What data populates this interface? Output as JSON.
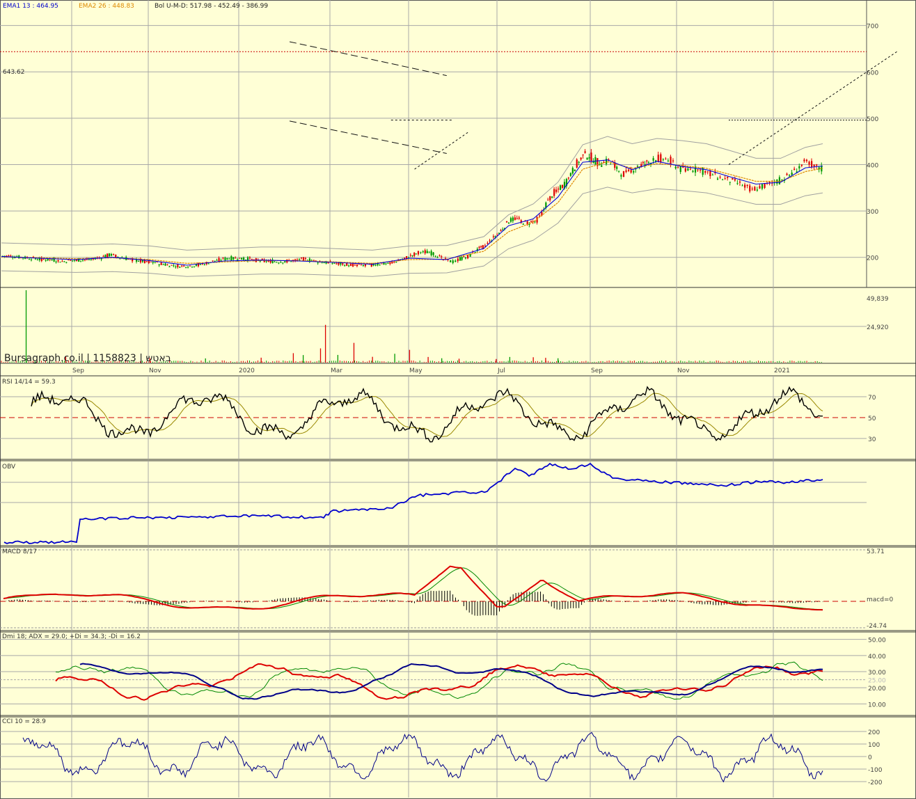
{
  "chart_data": {
    "type": "stock-technical-analysis",
    "brand_text": "Bursagraph.co.il | 1158823 | באטש",
    "header": {
      "ema1": "EMA1 13 : 464.95",
      "ema2": "EMA2 26 : 448.83",
      "bol": "Bol U-M-D: 517.98 - 452.49 - 386.99"
    },
    "price_axis": {
      "ticks": [
        200,
        300,
        400,
        500,
        600,
        700
      ],
      "ylim": [
        135,
        755
      ]
    },
    "resistance_level": 643.62,
    "resistance_label": "643.62",
    "volume_axis_labels": [
      "49,839",
      "24,920"
    ],
    "volume_max": 49839,
    "x_labels": [
      "Sep",
      "Nov",
      "2020",
      "Mar",
      "May",
      "Jul",
      "Sep",
      "Nov",
      "2021"
    ],
    "price_path": [
      [
        0,
        203
      ],
      [
        10,
        202
      ],
      [
        20,
        199
      ],
      [
        30,
        196
      ],
      [
        40,
        195
      ],
      [
        50,
        191
      ],
      [
        60,
        194
      ],
      [
        70,
        195
      ],
      [
        80,
        199
      ],
      [
        88,
        206
      ],
      [
        95,
        200
      ],
      [
        105,
        195
      ],
      [
        115,
        192
      ],
      [
        125,
        188
      ],
      [
        135,
        183
      ],
      [
        145,
        181
      ],
      [
        155,
        182
      ],
      [
        165,
        187
      ],
      [
        175,
        194
      ],
      [
        185,
        198
      ],
      [
        195,
        197
      ],
      [
        205,
        194
      ],
      [
        215,
        192
      ],
      [
        225,
        190
      ],
      [
        235,
        193
      ],
      [
        245,
        196
      ],
      [
        255,
        191
      ],
      [
        265,
        188
      ],
      [
        275,
        186
      ],
      [
        285,
        183
      ],
      [
        295,
        183
      ],
      [
        305,
        185
      ],
      [
        315,
        188
      ],
      [
        325,
        197
      ],
      [
        330,
        202
      ],
      [
        336,
        209
      ],
      [
        340,
        213
      ],
      [
        345,
        211
      ],
      [
        350,
        207
      ],
      [
        355,
        199
      ],
      [
        358,
        194
      ],
      [
        362,
        192
      ],
      [
        366,
        190
      ],
      [
        370,
        196
      ],
      [
        376,
        200
      ],
      [
        380,
        206
      ],
      [
        384,
        215
      ],
      [
        390,
        223
      ],
      [
        394,
        232
      ],
      [
        400,
        246
      ],
      [
        406,
        264
      ],
      [
        411,
        280
      ],
      [
        416,
        284
      ],
      [
        421,
        276
      ],
      [
        426,
        274
      ],
      [
        432,
        278
      ],
      [
        436,
        289
      ],
      [
        441,
        317
      ],
      [
        446,
        338
      ],
      [
        451,
        349
      ],
      [
        456,
        357
      ],
      [
        461,
        383
      ],
      [
        466,
        406
      ],
      [
        471,
        420
      ],
      [
        476,
        419
      ],
      [
        481,
        406
      ],
      [
        486,
        403
      ],
      [
        490,
        408
      ],
      [
        495,
        402
      ],
      [
        500,
        384
      ],
      [
        504,
        378
      ],
      [
        508,
        383
      ],
      [
        512,
        393
      ],
      [
        518,
        399
      ],
      [
        524,
        406
      ],
      [
        528,
        413
      ],
      [
        532,
        414
      ],
      [
        536,
        412
      ],
      [
        540,
        410
      ],
      [
        544,
        402
      ],
      [
        548,
        391
      ],
      [
        552,
        388
      ],
      [
        556,
        390
      ],
      [
        560,
        390
      ],
      [
        564,
        388
      ],
      [
        568,
        385
      ],
      [
        572,
        382
      ],
      [
        576,
        378
      ],
      [
        580,
        372
      ],
      [
        584,
        369
      ],
      [
        588,
        366
      ],
      [
        592,
        362
      ],
      [
        596,
        359
      ],
      [
        600,
        355
      ],
      [
        604,
        349
      ],
      [
        608,
        347
      ],
      [
        612,
        350
      ],
      [
        616,
        354
      ],
      [
        620,
        357
      ],
      [
        624,
        361
      ],
      [
        628,
        364
      ],
      [
        632,
        368
      ],
      [
        636,
        375
      ],
      [
        640,
        382
      ],
      [
        644,
        392
      ],
      [
        648,
        401
      ],
      [
        652,
        404
      ],
      [
        656,
        400
      ],
      [
        660,
        392
      ],
      [
        664,
        391
      ]
    ],
    "ema13_path": [
      [
        0,
        202
      ],
      [
        30,
        198
      ],
      [
        60,
        195
      ],
      [
        90,
        200
      ],
      [
        120,
        193
      ],
      [
        150,
        183
      ],
      [
        180,
        192
      ],
      [
        210,
        194
      ],
      [
        240,
        192
      ],
      [
        270,
        189
      ],
      [
        300,
        185
      ],
      [
        330,
        198
      ],
      [
        360,
        195
      ],
      [
        390,
        219
      ],
      [
        410,
        268
      ],
      [
        430,
        283
      ],
      [
        450,
        330
      ],
      [
        470,
        405
      ],
      [
        490,
        410
      ],
      [
        510,
        389
      ],
      [
        530,
        407
      ],
      [
        550,
        396
      ],
      [
        570,
        389
      ],
      [
        590,
        373
      ],
      [
        610,
        358
      ],
      [
        630,
        362
      ],
      [
        650,
        393
      ],
      [
        664,
        397
      ]
    ],
    "ema26_path": [
      [
        0,
        201
      ],
      [
        30,
        199
      ],
      [
        60,
        197
      ],
      [
        90,
        199
      ],
      [
        120,
        195
      ],
      [
        150,
        187
      ],
      [
        180,
        190
      ],
      [
        210,
        193
      ],
      [
        240,
        193
      ],
      [
        270,
        190
      ],
      [
        300,
        187
      ],
      [
        330,
        195
      ],
      [
        360,
        196
      ],
      [
        390,
        213
      ],
      [
        410,
        255
      ],
      [
        430,
        276
      ],
      [
        450,
        318
      ],
      [
        470,
        390
      ],
      [
        490,
        406
      ],
      [
        510,
        392
      ],
      [
        530,
        402
      ],
      [
        550,
        398
      ],
      [
        570,
        392
      ],
      [
        590,
        378
      ],
      [
        610,
        364
      ],
      [
        630,
        364
      ],
      [
        650,
        385
      ],
      [
        664,
        392
      ]
    ],
    "channel_lines": [
      {
        "points": [
          [
            233,
            665
          ],
          [
            360,
            592
          ]
        ]
      },
      {
        "points": [
          [
            233,
            494
          ],
          [
            360,
            424
          ]
        ]
      },
      {
        "points": [
          [
            334,
            390
          ],
          [
            378,
            471
          ]
        ]
      },
      {
        "points": [
          [
            315,
            496
          ],
          [
            364,
            496
          ]
        ]
      }
    ],
    "volume_bars": [
      [
        20,
        49839
      ],
      [
        52,
        4200
      ],
      [
        120,
        3100
      ],
      [
        165,
        2900
      ],
      [
        210,
        3400
      ],
      [
        236,
        6500
      ],
      [
        244,
        5200
      ],
      [
        258,
        9800
      ],
      [
        262,
        26000
      ],
      [
        272,
        5300
      ],
      [
        285,
        13600
      ],
      [
        300,
        4000
      ],
      [
        318,
        6100
      ],
      [
        330,
        8800
      ],
      [
        345,
        3900
      ],
      [
        356,
        3000
      ],
      [
        370,
        2700
      ],
      [
        400,
        2500
      ],
      [
        411,
        3900
      ],
      [
        430,
        3700
      ],
      [
        440,
        3300
      ],
      [
        450,
        3000
      ]
    ],
    "rsi": {
      "label": "RSI 14/14 = 59.3",
      "ticks": [
        70,
        50,
        30
      ],
      "range": [
        10,
        90
      ]
    },
    "obv": {
      "label": "OBV"
    },
    "macd": {
      "label": "MACD 8/17",
      "ticks": [
        "53.71",
        "macd=0",
        "-24.74"
      ],
      "max": 53.71,
      "min": -24.74
    },
    "dmi": {
      "label": "Dmi 18; ADX = 29.0; +Di = 34.3; -Di = 16.2",
      "ticks": [
        50,
        40,
        30,
        25,
        20,
        10
      ]
    },
    "cci": {
      "label": "CCI 10 = 28.9",
      "ticks": [
        200,
        100,
        0,
        -100,
        -200
      ]
    }
  },
  "colors": {
    "background": "#ffffd6",
    "grid": "#a8a8a8",
    "up_candle": "#009900",
    "down_candle": "#dd0000",
    "ema1": "#0000dd",
    "ema2": "#dd8800",
    "bollinger": "#a0a0a0",
    "rsi": "#000000",
    "obv": "#0000cc",
    "macd_line": "#dd0000",
    "signal_line": "#008800",
    "adx": "#000088",
    "minus_di": "#dd0000",
    "plus_di": "#008800",
    "cci": "#000088",
    "dashed_red": "#cc0000"
  }
}
